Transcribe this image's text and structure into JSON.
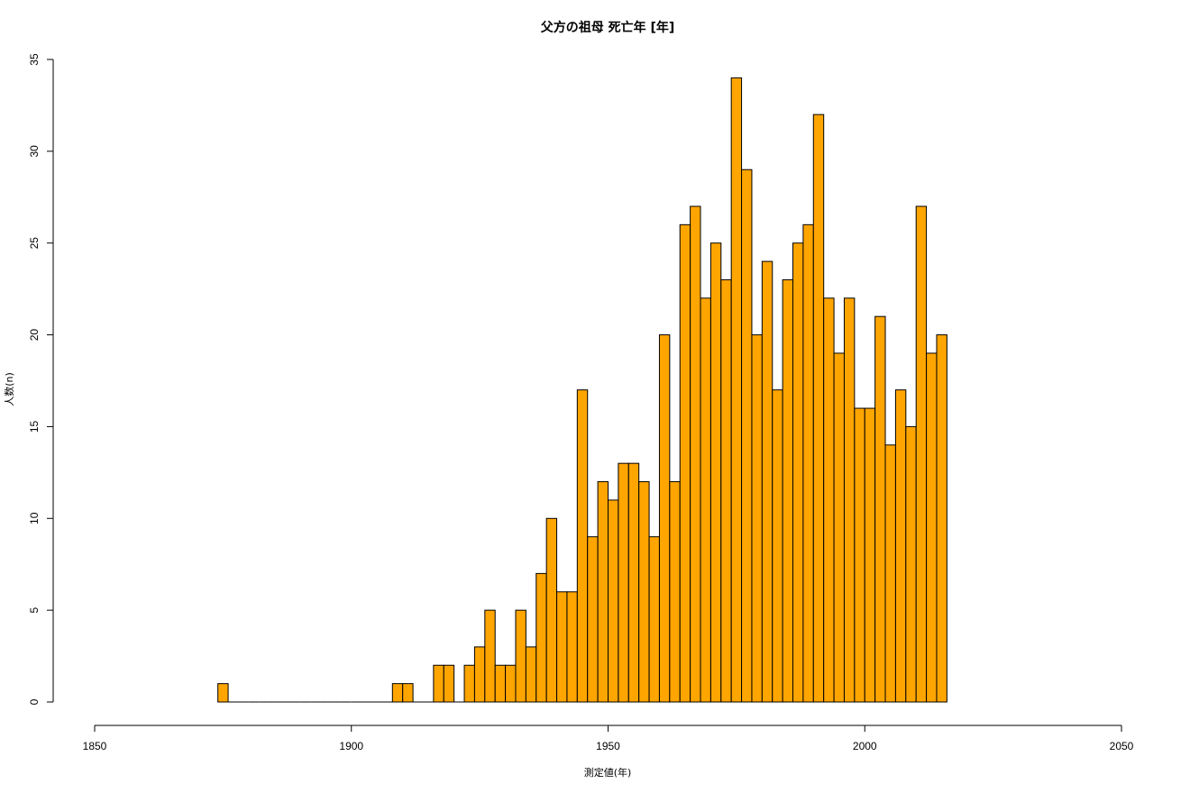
{
  "chart_data": {
    "type": "bar",
    "title": "父方の祖母 死亡年 [年]",
    "xlabel": "測定値(年)",
    "ylabel": "人数(n)",
    "xlim": [
      1850,
      2050
    ],
    "ylim": [
      0,
      35
    ],
    "x_ticks": [
      "1850",
      "1900",
      "1950",
      "2000",
      "2050"
    ],
    "y_ticks": [
      "0",
      "5",
      "10",
      "15",
      "20",
      "25",
      "30",
      "35"
    ],
    "bin_width": 2,
    "bin_start": 1874,
    "bar_color": "#FFA500",
    "values": [
      1,
      0,
      0,
      0,
      0,
      0,
      0,
      0,
      0,
      0,
      0,
      0,
      0,
      0,
      0,
      0,
      0,
      1,
      1,
      0,
      0,
      2,
      2,
      0,
      2,
      3,
      5,
      2,
      2,
      5,
      3,
      7,
      10,
      6,
      6,
      17,
      9,
      12,
      11,
      13,
      13,
      12,
      9,
      20,
      12,
      26,
      27,
      22,
      25,
      23,
      34,
      29,
      20,
      24,
      17,
      23,
      25,
      26,
      32,
      22,
      19,
      22,
      16,
      16,
      21,
      14,
      17,
      15,
      27,
      19,
      20
    ]
  }
}
